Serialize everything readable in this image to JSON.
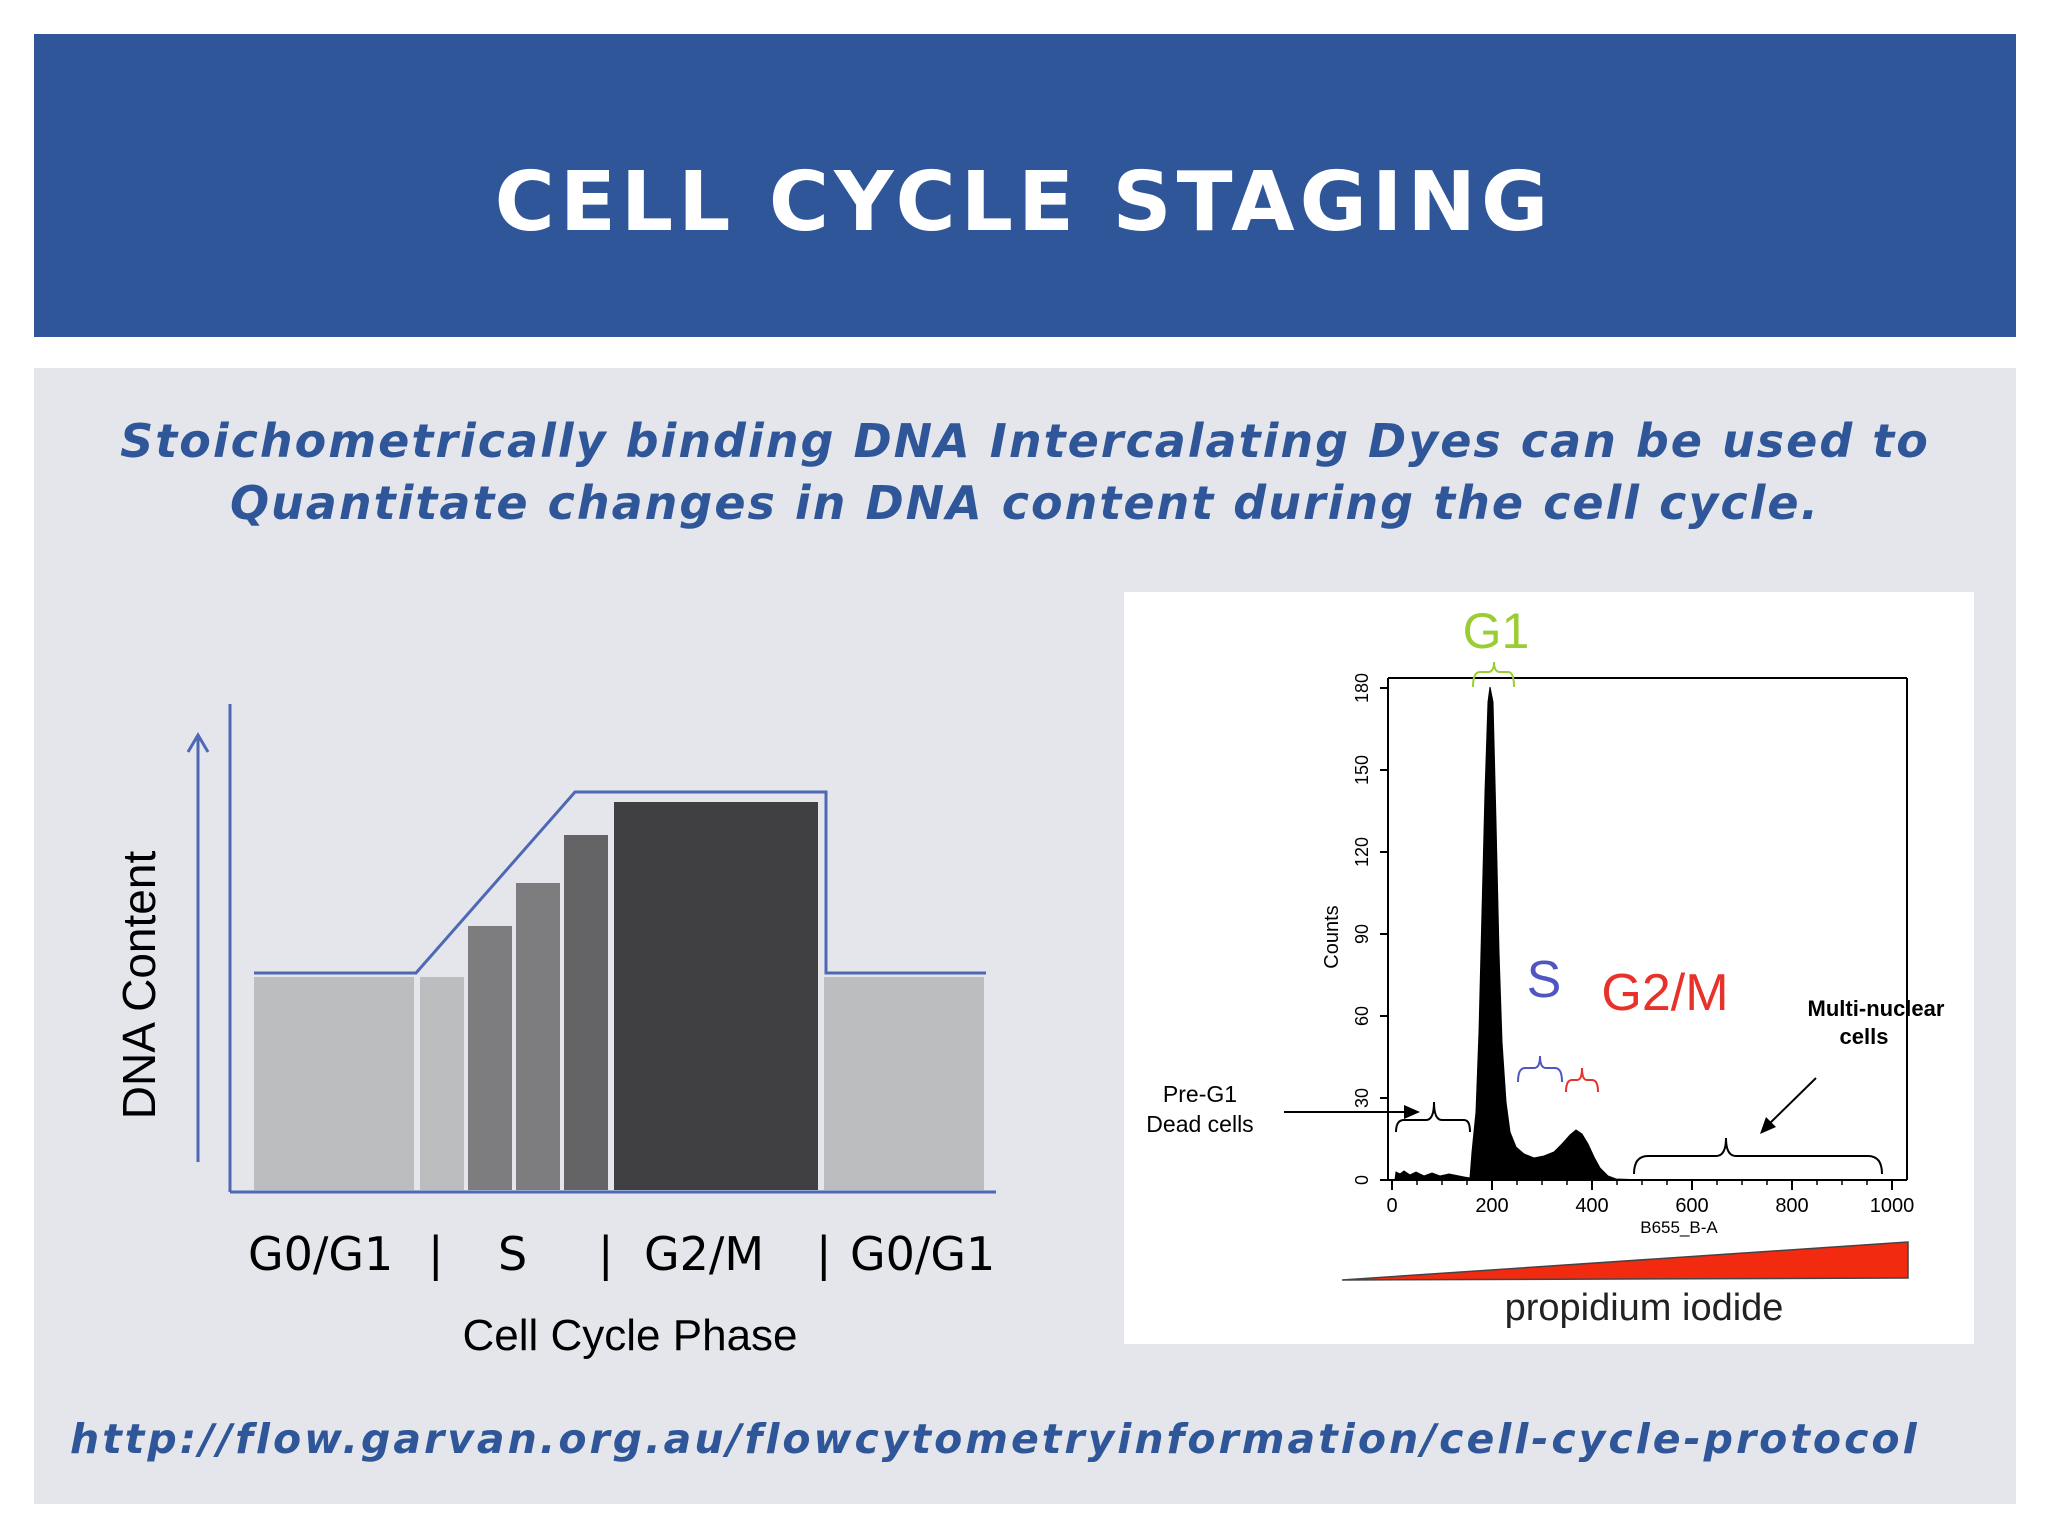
{
  "slide": {
    "title": "CELL CYCLE STAGING",
    "subtitle_line1": "Stoichometrically binding DNA Intercalating Dyes can be used to",
    "subtitle_line2": "Quantitate changes in DNA content during the cell cycle.",
    "url": "http://flow.garvan.org.au/flowcytometryinformation/cell-cycle-protocol",
    "colors": {
      "header": "#2e5698",
      "content_bg": "#e4e6eb",
      "accent_text": "#2e5698"
    }
  },
  "diagram": {
    "y_label": "DNA Content",
    "x_label": "Cell Cycle Phase",
    "phase_labels": [
      "G0/G1",
      "|",
      "S",
      "|",
      "G2/M",
      "|",
      "G0/G1"
    ],
    "bar_levels": [
      1.0,
      1.0,
      1.53,
      1.67,
      1.86,
      2.0,
      1.0
    ],
    "colors": {
      "light": "#bcbdbf",
      "mid": "#7d7d80",
      "dark": "#646467",
      "darkest": "#404042",
      "outline": "#4e68b6"
    }
  },
  "histogram": {
    "phase_labels": {
      "g1": "G1",
      "s": "S",
      "g2m": "G2/M"
    },
    "y_axis_label": "Counts",
    "y_ticks": [
      "0",
      "30",
      "60",
      "90",
      "120",
      "150",
      "180"
    ],
    "x_ticks": [
      "0",
      "200",
      "400",
      "600",
      "800",
      "1000"
    ],
    "x_axis_label": "B655_B-A",
    "annotation_pre_g1": [
      "Pre-G1",
      "Dead cells"
    ],
    "annotation_multi": [
      "Multi-nuclear",
      "cells"
    ],
    "dye_label": "propidium iodide",
    "colors": {
      "g1": "#9acd32",
      "s": "#5055c0",
      "g2m": "#e8312a",
      "wedge": "#f22a10"
    }
  }
}
